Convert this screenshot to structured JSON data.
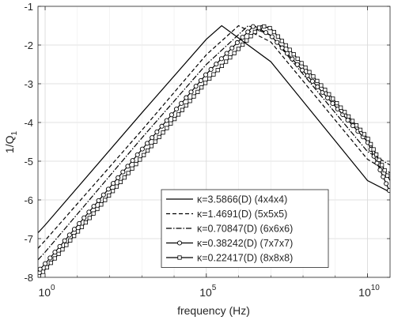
{
  "chart_data": {
    "type": "line",
    "xlabel": "frequency (Hz)",
    "ylabel": "1/Q_1",
    "x_scale": "log",
    "xlim": [
      0.6,
      50000000000.0
    ],
    "ylim": [
      -8,
      -1
    ],
    "x_ticks": [
      {
        "value": 1,
        "mantissa": "10",
        "exponent": "0"
      },
      {
        "value": 100000,
        "mantissa": "10",
        "exponent": "5"
      },
      {
        "value": 10000000000,
        "mantissa": "10",
        "exponent": "10"
      }
    ],
    "y_ticks": [
      -8,
      -7,
      -6,
      -5,
      -4,
      -3,
      -2,
      -1
    ],
    "grid": true,
    "legend_position": "lower-right",
    "series": [
      {
        "name": "κ=3.5866(D) (4x4x4)",
        "style": "solid",
        "marker": "none",
        "x": [
          0.6,
          1,
          1000,
          100000,
          300000,
          10000000,
          10000000000,
          50000000000
        ],
        "y": [
          -6.85,
          -6.65,
          -3.75,
          -1.85,
          -1.5,
          -2.43,
          -5.5,
          -5.8
        ]
      },
      {
        "name": "κ=1.4691(D) (5x5x5)",
        "style": "dashed",
        "marker": "none",
        "x": [
          0.6,
          1,
          1000,
          100000,
          1000000,
          10000000,
          10000000000,
          50000000000
        ],
        "y": [
          -7.25,
          -7.05,
          -4.2,
          -2.25,
          -1.5,
          -1.92,
          -4.95,
          -5.3
        ]
      },
      {
        "name": "κ=0.70847(D) (6x6x6)",
        "style": "dashdot",
        "marker": "none",
        "x": [
          0.6,
          1,
          1000,
          100000,
          2000000,
          10000000,
          10000000000,
          50000000000
        ],
        "y": [
          -7.55,
          -7.35,
          -4.4,
          -2.5,
          -1.5,
          -1.75,
          -4.75,
          -5.1
        ]
      },
      {
        "name": "κ=0.38242(D) (7x7x7)",
        "style": "solid",
        "marker": "circle",
        "x": [
          0.6,
          1,
          1000,
          100000,
          3000000,
          10000000,
          10000000000,
          50000000000
        ],
        "y": [
          -7.85,
          -7.65,
          -4.7,
          -2.75,
          -1.5,
          -1.75,
          -4.5,
          -5.8
        ]
      },
      {
        "name": "κ=0.22417(D) (8x8x8)",
        "style": "solid",
        "marker": "square",
        "x": [
          0.6,
          1,
          1000,
          100000,
          5000000,
          10000000,
          10000000000,
          50000000000
        ],
        "y": [
          -8.0,
          -7.8,
          -4.9,
          -2.95,
          -1.5,
          -1.57,
          -4.4,
          -5.5
        ]
      }
    ]
  }
}
